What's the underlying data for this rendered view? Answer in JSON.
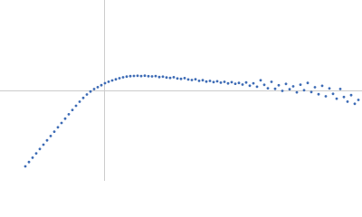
{
  "chart_data": {
    "type": "scatter",
    "color": "#3d6bb5",
    "xlim": [
      -115,
      285
    ],
    "ylim": [
      -100,
      100
    ],
    "origin_lines": true,
    "x": [
      -87,
      -83,
      -79,
      -75,
      -71,
      -67,
      -63,
      -59,
      -55,
      -51,
      -47,
      -43,
      -39,
      -35,
      -31,
      -27,
      -23,
      -19,
      -15,
      -11,
      -7,
      -3,
      1,
      5,
      9,
      13,
      17,
      21,
      25,
      29,
      33,
      37,
      41,
      45,
      49,
      53,
      57,
      61,
      65,
      69,
      73,
      77,
      81,
      85,
      89,
      93,
      97,
      101,
      105,
      109,
      113,
      117,
      121,
      125,
      129,
      133,
      137,
      141,
      145,
      149,
      153,
      157,
      161,
      165,
      169,
      173,
      177,
      181,
      185,
      189,
      193,
      197,
      201,
      205,
      209,
      213,
      217,
      221,
      225,
      229,
      233,
      237,
      241,
      245,
      249,
      253,
      257,
      261,
      265,
      269,
      273,
      277,
      281
    ],
    "values": [
      -84,
      -79.2,
      -74.4,
      -69.6,
      -64.8,
      -60,
      -55.2,
      -50.4,
      -45.6,
      -40.8,
      -36,
      -31.2,
      -26.4,
      -21.6,
      -17,
      -12.5,
      -8.3,
      -4.5,
      -1.2,
      1.5,
      3.6,
      5.8,
      8,
      9.6,
      11,
      12.3,
      13.5,
      14.5,
      15.3,
      15.8,
      16,
      16.2,
      15.9,
      16.3,
      15.7,
      15.5,
      15.9,
      14.8,
      15.2,
      14.3,
      13.9,
      14.6,
      13.2,
      12.8,
      13.6,
      12.1,
      11.5,
      12.4,
      10.6,
      11.3,
      9.8,
      10.5,
      9.2,
      10.1,
      8.6,
      9.5,
      7.8,
      9.1,
      7.4,
      8.3,
      6.5,
      8.8,
      5.2,
      7.9,
      4.1,
      11.2,
      6.2,
      2.4,
      9.5,
      1.8,
      5.7,
      -0.5,
      7.2,
      1.3,
      4.5,
      -2.1,
      6.4,
      0.2,
      8.3,
      -1.8,
      3.5,
      -4.2,
      5.1,
      -6.5,
      2.2,
      -3.8,
      -9.1,
      1.6,
      -7.3,
      -12.4,
      -5.2,
      -14.8,
      -10.5
    ]
  }
}
